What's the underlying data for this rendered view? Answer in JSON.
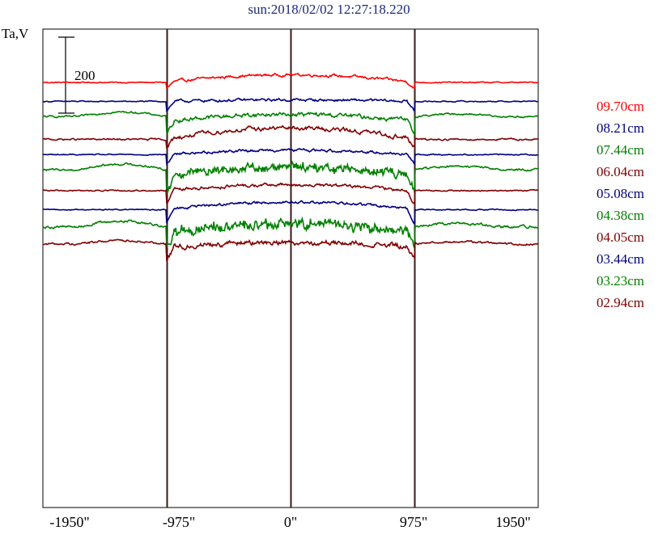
{
  "chart_data": {
    "type": "line",
    "title": "sun:2018/02/02 12:27:18.220",
    "ylabel": "Ta,V",
    "scale_bar_label": "200",
    "scale_bar_value": 200,
    "xlim": [
      -1950,
      1950
    ],
    "x_ticks": [
      -1950,
      -975,
      0,
      975,
      1950
    ],
    "x_tick_labels": [
      "-1950\"",
      "-975\"",
      "0\"",
      "975\"",
      "1950\""
    ],
    "vertical_lines": [
      -975,
      0,
      975
    ],
    "grid": false,
    "legend_position": "right",
    "series": [
      {
        "name": "09.70cm",
        "color": "#ff0000",
        "baseline": 0,
        "profile": "flat-bump",
        "edge_dip": 15,
        "disk_amp": 20,
        "noise": 5
      },
      {
        "name": "08.21cm",
        "color": "#000080",
        "baseline": -50,
        "profile": "flat",
        "edge_dip": 25,
        "disk_amp": 8,
        "noise": 5
      },
      {
        "name": "07.44cm",
        "color": "#008000",
        "baseline": -90,
        "profile": "limb",
        "edge_dip": 35,
        "disk_amp": 20,
        "noise": 8
      },
      {
        "name": "06.04cm",
        "color": "#800000",
        "baseline": -150,
        "profile": "bump",
        "edge_dip": 20,
        "disk_amp": 30,
        "noise": 8
      },
      {
        "name": "05.08cm",
        "color": "#000080",
        "baseline": -190,
        "profile": "bump",
        "edge_dip": 25,
        "disk_amp": 12,
        "noise": 5
      },
      {
        "name": "04.38cm",
        "color": "#008000",
        "baseline": -230,
        "profile": "limb-strong",
        "edge_dip": 45,
        "disk_amp": 25,
        "noise": 10
      },
      {
        "name": "04.05cm",
        "color": "#800000",
        "baseline": -285,
        "profile": "bump",
        "edge_dip": 35,
        "disk_amp": 15,
        "noise": 6
      },
      {
        "name": "03.44cm",
        "color": "#000080",
        "baseline": -335,
        "profile": "bump",
        "edge_dip": 35,
        "disk_amp": 20,
        "noise": 5
      },
      {
        "name": "03.23cm",
        "color": "#008000",
        "baseline": -380,
        "profile": "limb-strong",
        "edge_dip": 45,
        "disk_amp": 25,
        "noise": 12
      },
      {
        "name": "02.94cm",
        "color": "#800000",
        "baseline": -425,
        "profile": "limb",
        "edge_dip": 35,
        "disk_amp": 15,
        "noise": 10
      }
    ]
  }
}
